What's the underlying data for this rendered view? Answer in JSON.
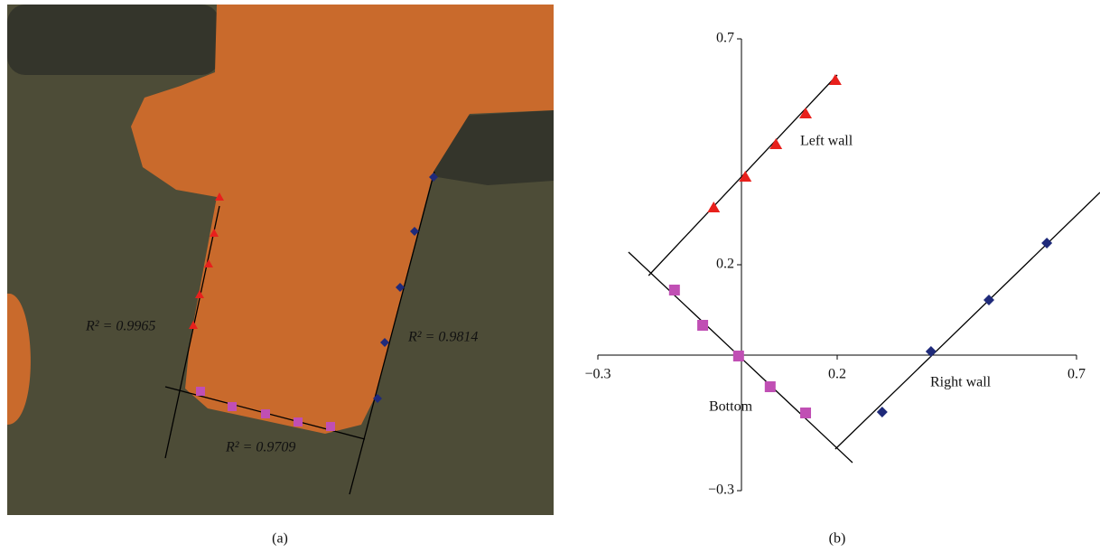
{
  "panel_a": {
    "caption": "(a)",
    "annotations": [
      "R² = 0.9965",
      "R² = 0.9814",
      "R² = 0.9709"
    ]
  },
  "chart_data": {
    "type": "scatter",
    "caption": "(b)",
    "xlim": [
      -0.3,
      0.7
    ],
    "ylim": [
      -0.3,
      0.7
    ],
    "xticks": [
      {
        "value": -0.3,
        "label": "−0.3"
      },
      0.2,
      0.7
    ],
    "yticks": [
      {
        "value": -0.3,
        "label": "−0.3"
      },
      0.2,
      0.7
    ],
    "series": [
      {
        "name": "Left wall",
        "color": "#e8201c",
        "marker": "triangle",
        "x": [
          -0.058,
          0.008,
          0.072,
          0.134,
          0.196
        ],
        "values": [
          0.326,
          0.394,
          0.466,
          0.534,
          0.608
        ],
        "fit": {
          "x": [
            -0.194,
            0.2
          ],
          "y": [
            0.176,
            0.62
          ]
        }
      },
      {
        "name": "Bottom",
        "color": "#c04fb4",
        "marker": "square",
        "x": [
          -0.14,
          -0.081,
          -0.006,
          0.06,
          0.134
        ],
        "values": [
          0.144,
          0.066,
          -0.002,
          -0.07,
          -0.128
        ],
        "fit": {
          "x": [
            -0.236,
            0.232
          ],
          "y": [
            0.228,
            -0.238
          ]
        }
      },
      {
        "name": "Right wall",
        "color": "#1f2a7a",
        "marker": "diamond",
        "x": [
          0.294,
          0.396,
          0.517,
          0.638
        ],
        "values": [
          -0.126,
          0.008,
          0.122,
          0.248
        ],
        "fit": {
          "x": [
            0.196,
            0.749
          ],
          "y": [
            -0.208,
            0.36
          ]
        }
      }
    ]
  }
}
